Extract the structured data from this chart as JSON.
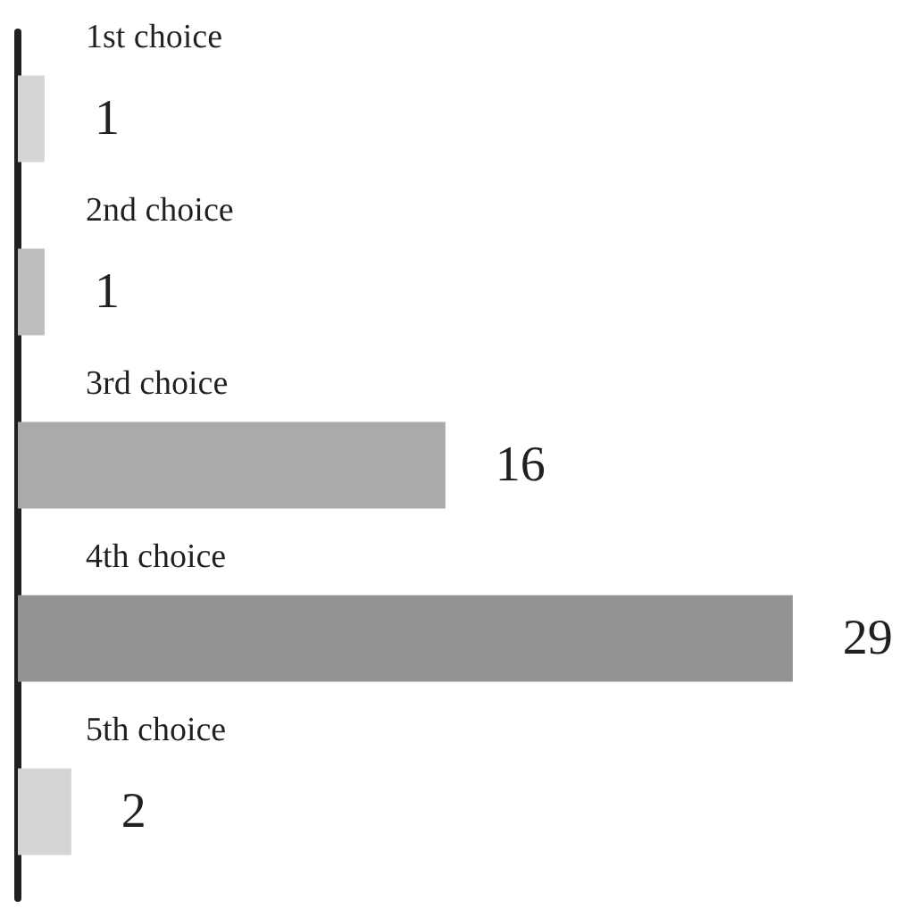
{
  "chart_data": {
    "type": "bar",
    "orientation": "horizontal",
    "categories": [
      "1st choice",
      "2nd choice",
      "3rd choice",
      "4th choice",
      "5th choice"
    ],
    "values": [
      1,
      1,
      16,
      29,
      2
    ],
    "colors": [
      "#d4d5d6",
      "#bdbec0",
      "#a9aaac",
      "#929395",
      "#d4d5d6"
    ],
    "data_labels": true
  }
}
